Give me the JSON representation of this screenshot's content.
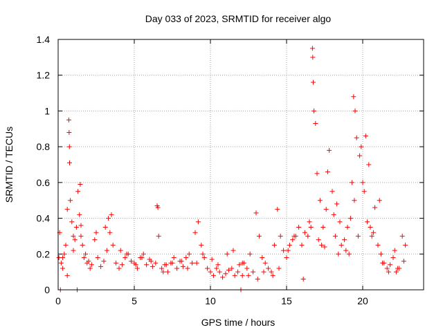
{
  "chart_data": {
    "type": "scatter",
    "title": "Day 033 of 2023, SRMTID for receiver algo",
    "xlabel": "GPS time / hours",
    "ylabel": "SRMTID / TECUs",
    "xlim": [
      0,
      24
    ],
    "ylim": [
      0,
      1.4
    ],
    "xticks": [
      "0",
      "5",
      "10",
      "15",
      "20"
    ],
    "yticks": [
      "0",
      "0.2",
      "0.4",
      "0.6",
      "0.8",
      "1",
      "1.2",
      "1.4"
    ],
    "grid": true,
    "marker": "+",
    "color": "#ff0000",
    "series": [
      {
        "name": "SRMTID",
        "x": [
          0.05,
          0.1,
          0.2,
          0.3,
          0.4,
          0.5,
          0.6,
          0.7,
          0.72,
          0.74,
          0.75,
          0.8,
          0.9,
          1.0,
          1.1,
          1.2,
          1.3,
          1.4,
          1.45,
          1.5,
          1.6,
          1.7,
          1.8,
          1.9,
          2.0,
          2.2,
          2.4,
          2.6,
          2.8,
          3.0,
          3.2,
          3.4,
          3.5,
          3.6,
          3.8,
          4.0,
          4.2,
          4.4,
          4.6,
          4.8,
          5.0,
          5.2,
          5.4,
          5.6,
          5.8,
          6.0,
          6.2,
          6.4,
          6.5,
          6.55,
          6.6,
          6.8,
          7.0,
          7.2,
          7.4,
          7.6,
          7.8,
          8.0,
          8.2,
          8.4,
          8.6,
          8.8,
          9.0,
          9.2,
          9.4,
          9.6,
          9.8,
          10.0,
          10.2,
          10.4,
          10.6,
          10.8,
          11.0,
          11.2,
          11.4,
          11.6,
          11.8,
          12.0,
          12.2,
          12.4,
          12.6,
          12.8,
          13.0,
          13.2,
          13.4,
          13.6,
          13.8,
          14.0,
          14.2,
          14.4,
          14.6,
          14.8,
          15.0,
          15.2,
          15.4,
          15.6,
          15.8,
          16.0,
          16.2,
          16.4,
          16.6,
          16.7,
          16.72,
          16.75,
          16.8,
          16.9,
          17.0,
          17.2,
          17.4,
          17.6,
          17.8,
          18.0,
          18.2,
          18.4,
          18.6,
          18.8,
          19.0,
          19.2,
          19.3,
          19.4,
          19.5,
          19.6,
          19.8,
          20.0,
          20.2,
          20.4,
          20.6,
          20.8,
          21.0,
          21.2,
          21.4,
          21.6,
          21.8,
          22.0,
          22.2,
          22.4,
          22.6,
          22.8,
          0.3,
          0.6,
          1.0,
          1.5,
          2.5,
          3.1,
          4.1,
          5.1,
          6.1,
          7.1,
          8.1,
          9.1,
          10.1,
          11.1,
          12.1,
          13.1,
          14.1,
          15.1,
          16.1,
          17.1,
          17.5,
          18.1,
          18.5,
          19.1,
          19.7,
          20.1,
          20.5,
          21.1,
          22.1,
          11.9,
          12.1,
          0.15,
          1.25,
          2.1,
          3.3,
          4.5,
          5.5,
          6.9,
          7.5,
          8.5,
          9.5,
          10.5,
          11.5,
          12.5,
          13.5,
          14.5,
          15.5,
          16.5,
          17.3,
          17.7,
          18.3,
          18.9,
          19.45,
          19.9,
          20.3,
          20.7,
          21.3,
          21.7,
          22.3,
          22.7
        ],
        "y": [
          0.18,
          0.32,
          0.15,
          0.12,
          0.2,
          0.25,
          0.45,
          0.95,
          0.88,
          0.8,
          0.71,
          0.5,
          0.38,
          0.3,
          0.28,
          0.35,
          0.55,
          0.42,
          0.59,
          0.36,
          0.25,
          0.18,
          0.2,
          0.15,
          0.16,
          0.14,
          0.28,
          0.18,
          0.13,
          0.16,
          0.22,
          0.32,
          0.42,
          0.25,
          0.15,
          0.12,
          0.14,
          0.18,
          0.2,
          0.16,
          0.15,
          0.12,
          0.18,
          0.2,
          0.14,
          0.17,
          0.13,
          0.15,
          0.47,
          0.46,
          0.3,
          0.12,
          0.14,
          0.1,
          0.15,
          0.18,
          0.12,
          0.16,
          0.13,
          0.18,
          0.2,
          0.15,
          0.32,
          0.38,
          0.25,
          0.18,
          0.12,
          0.1,
          0.08,
          0.12,
          0.1,
          0.07,
          0.09,
          0.11,
          0.12,
          0.08,
          0.1,
          0.0,
          0.15,
          0.12,
          0.2,
          0.1,
          0.43,
          0.3,
          0.18,
          0.15,
          0.12,
          0.1,
          0.25,
          0.45,
          0.3,
          0.22,
          0.18,
          0.25,
          0.28,
          0.3,
          0.35,
          0.25,
          0.32,
          0.3,
          0.35,
          1.35,
          1.3,
          1.16,
          1.0,
          0.93,
          0.65,
          0.5,
          0.35,
          0.45,
          0.78,
          0.55,
          0.3,
          0.2,
          0.25,
          0.28,
          0.35,
          0.4,
          0.6,
          1.08,
          1.0,
          0.85,
          0.75,
          0.6,
          0.86,
          0.7,
          0.3,
          0.46,
          0.25,
          0.2,
          0.15,
          0.12,
          0.14,
          0.18,
          0.1,
          0.12,
          0.3,
          0.25,
          0.18,
          0.08,
          0.22,
          0.3,
          0.32,
          0.35,
          0.22,
          0.14,
          0.16,
          0.14,
          0.16,
          0.15,
          0.17,
          0.2,
          0.08,
          0.06,
          0.08,
          0.22,
          0.06,
          0.28,
          0.24,
          0.42,
          0.38,
          0.2,
          0.3,
          0.55,
          0.35,
          0.5,
          0.22,
          0.14,
          0.15,
          0.0,
          0.0,
          0.12,
          0.4,
          0.2,
          0.18,
          0.1,
          0.15,
          0.12,
          0.2,
          0.14,
          0.22,
          0.08,
          0.1,
          0.12,
          0.3,
          0.38,
          0.25,
          0.66,
          0.48,
          0.22,
          0.5,
          0.8,
          0.38,
          0.32,
          0.15,
          0.1,
          0.12,
          0.16
        ]
      }
    ]
  }
}
